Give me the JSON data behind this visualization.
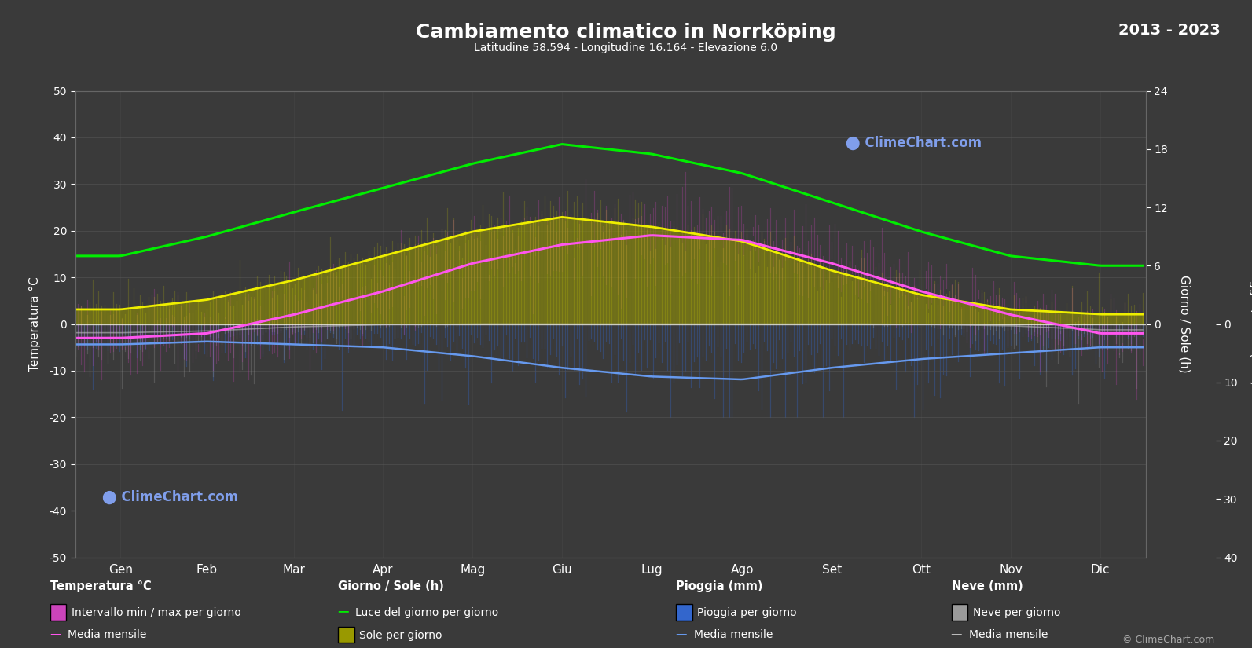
{
  "title": "Cambiamento climatico in Norrköping",
  "subtitle": "Latitudine 58.594 - Longitudine 16.164 - Elevazione 6.0",
  "year_range": "2013 - 2023",
  "background_color": "#3a3a3a",
  "text_color": "#ffffff",
  "grid_color": "#555555",
  "months_it": [
    "Gen",
    "Feb",
    "Mar",
    "Apr",
    "Mag",
    "Giu",
    "Lug",
    "Ago",
    "Set",
    "Ott",
    "Nov",
    "Dic"
  ],
  "ylim_temp": [
    -50,
    50
  ],
  "temp_min_monthly": [
    -6,
    -6,
    -3,
    2,
    8,
    12,
    14,
    13,
    9,
    4,
    -1,
    -5
  ],
  "temp_max_monthly": [
    1,
    2,
    6,
    12,
    18,
    22,
    24,
    23,
    17,
    10,
    4,
    1
  ],
  "temp_mean_monthly": [
    -3,
    -2,
    2,
    7,
    13,
    17,
    19,
    18,
    13,
    7,
    2,
    -2
  ],
  "daylight_hours": [
    7.0,
    9.0,
    11.5,
    14.0,
    16.5,
    18.5,
    17.5,
    15.5,
    12.5,
    9.5,
    7.0,
    6.0
  ],
  "sunshine_hours_daily": [
    1.5,
    2.5,
    4.5,
    7.0,
    9.5,
    11.0,
    10.0,
    8.5,
    5.5,
    3.0,
    1.5,
    1.0
  ],
  "sunshine_mean_monthly": [
    1.5,
    2.5,
    4.5,
    7.0,
    9.5,
    11.0,
    10.0,
    8.5,
    5.5,
    3.0,
    1.5,
    1.0
  ],
  "rain_daily_typical": [
    2.5,
    2.0,
    2.5,
    2.5,
    3.0,
    4.0,
    5.0,
    5.5,
    4.5,
    4.0,
    3.0,
    2.5
  ],
  "rain_mean_monthly": [
    3.5,
    3.0,
    3.5,
    4.0,
    5.5,
    7.5,
    9.0,
    9.5,
    7.5,
    6.0,
    5.0,
    4.0
  ],
  "snow_daily_typical": [
    4.0,
    3.5,
    2.0,
    0.5,
    0.0,
    0.0,
    0.0,
    0.0,
    0.0,
    0.2,
    1.5,
    3.5
  ],
  "snow_mean_monthly": [
    1.5,
    1.2,
    0.5,
    0.1,
    0.0,
    0.0,
    0.0,
    0.0,
    0.0,
    0.05,
    0.3,
    1.0
  ],
  "color_daylight": "#00ee00",
  "color_sunshine_bar": "#cccc00",
  "color_sunshine_mean": "#eeee00",
  "color_temp_range_pink": "#cc44bb",
  "color_temp_mean": "#ff55ee",
  "color_rain_bar": "#3366cc",
  "color_rain_mean": "#6699ee",
  "color_snow_bar": "#999999",
  "color_snow_mean": "#bbbbbb",
  "sun_scale": 2.083,
  "rain_scale": 1.25,
  "logo_text": "ClimeChart.com",
  "copyright": "© ClimeChart.com"
}
